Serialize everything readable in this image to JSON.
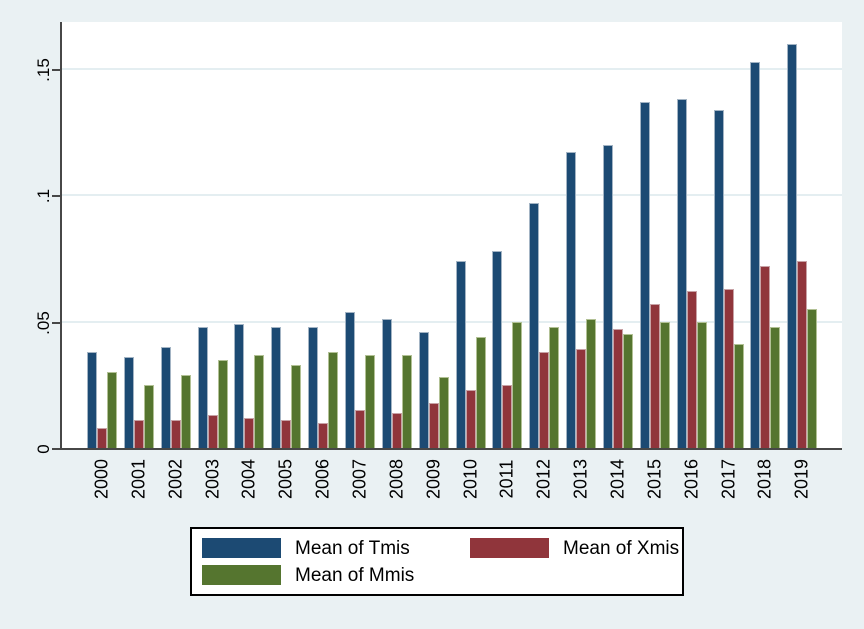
{
  "figure": {
    "background_color": "#eaf1f3",
    "plot_background_color": "#ffffff",
    "grid_color": "#e4eef1",
    "axis_color": "#474747",
    "text_color": "#000000",
    "legend": {
      "border_color": "#000000",
      "background_color": "#ffffff"
    }
  },
  "chart_data": {
    "type": "bar",
    "title": "",
    "xlabel": "",
    "ylabel": "",
    "categories": [
      "2000",
      "2001",
      "2002",
      "2003",
      "2004",
      "2005",
      "2006",
      "2007",
      "2008",
      "2009",
      "2010",
      "2011",
      "2012",
      "2013",
      "2014",
      "2015",
      "2016",
      "2017",
      "2018",
      "2019"
    ],
    "series": [
      {
        "name": "Mean of Tmis",
        "color": "#1c4a73",
        "edge_color": "#a3b4c4",
        "values": [
          0.038,
          0.036,
          0.04,
          0.048,
          0.049,
          0.048,
          0.048,
          0.054,
          0.051,
          0.046,
          0.074,
          0.078,
          0.097,
          0.117,
          0.12,
          0.137,
          0.138,
          0.134,
          0.153,
          0.16
        ]
      },
      {
        "name": "Mean of Xmis",
        "color": "#90353b",
        "edge_color": "#c8a2a6",
        "values": [
          0.008,
          0.011,
          0.011,
          0.013,
          0.012,
          0.011,
          0.01,
          0.015,
          0.014,
          0.018,
          0.023,
          0.025,
          0.038,
          0.039,
          0.047,
          0.057,
          0.062,
          0.063,
          0.072,
          0.074
        ]
      },
      {
        "name": "Mean of Mmis",
        "color": "#55752f",
        "edge_color": "#b2c195",
        "values": [
          0.03,
          0.025,
          0.029,
          0.035,
          0.037,
          0.033,
          0.038,
          0.037,
          0.037,
          0.028,
          0.044,
          0.05,
          0.048,
          0.051,
          0.045,
          0.05,
          0.05,
          0.041,
          0.048,
          0.055
        ]
      }
    ],
    "ylim": [
      0,
      0.169
    ],
    "yticks": {
      "values": [
        0,
        0.05,
        0.1,
        0.15
      ],
      "labels": [
        "0",
        ".05",
        ".1",
        ".15"
      ]
    },
    "grid": true,
    "legend_position": "bottom-center"
  }
}
